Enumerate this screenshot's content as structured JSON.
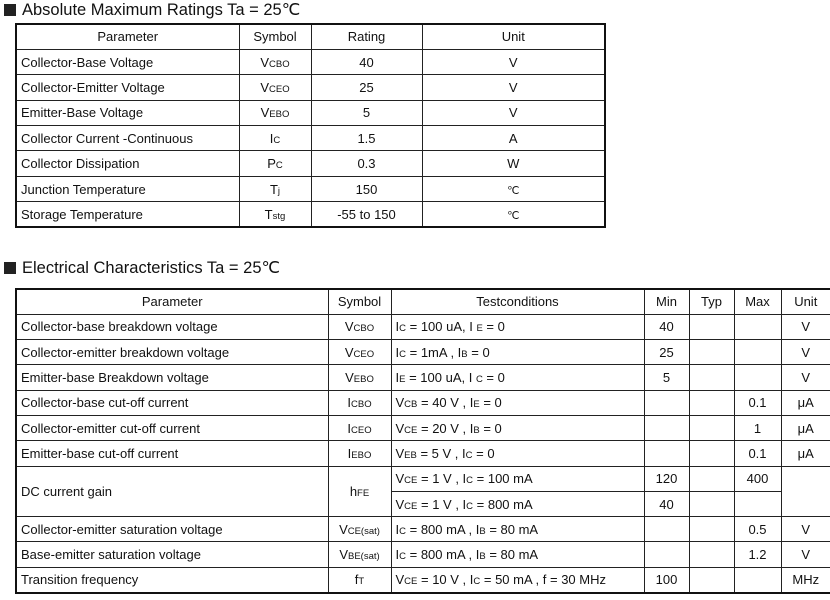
{
  "section1": {
    "title": "Absolute Maximum Ratings Ta = 25℃",
    "headers": [
      "Parameter",
      "Symbol",
      "Rating",
      "Unit"
    ],
    "rows": [
      {
        "parameter": "Collector-Base Voltage",
        "symbol": [
          "V",
          "CBO"
        ],
        "rating": "40",
        "unit": "V"
      },
      {
        "parameter": "Collector-Emitter Voltage",
        "symbol": [
          "V",
          "CEO"
        ],
        "rating": "25",
        "unit": "V"
      },
      {
        "parameter": "Emitter-Base Voltage",
        "symbol": [
          "V",
          "EBO"
        ],
        "rating": "5",
        "unit": "V"
      },
      {
        "parameter": "Collector Current -Continuous",
        "symbol": [
          "I",
          "C"
        ],
        "rating": "1.5",
        "unit": "A"
      },
      {
        "parameter": "Collector Dissipation",
        "symbol": [
          "P",
          "C"
        ],
        "rating": "0.3",
        "unit": "W"
      },
      {
        "parameter": "Junction Temperature",
        "symbol": [
          "T",
          "j"
        ],
        "rating": "150",
        "unit": "℃"
      },
      {
        "parameter": "Storage Temperature",
        "symbol": [
          "T",
          "stg"
        ],
        "rating": "-55 to 150",
        "unit": "℃"
      }
    ]
  },
  "section2": {
    "title": "Electrical Characteristics Ta = 25℃",
    "headers": [
      "Parameter",
      "Symbol",
      "Testconditions",
      "Min",
      "Typ",
      "Max",
      "Unit"
    ],
    "rows": [
      {
        "parameter": "Collector-base breakdown voltage",
        "symbol": [
          "V",
          "CBO"
        ],
        "conditions": [
          [
            [
              "I",
              "C"
            ],
            [
              " = 100 uA, I ",
              "E"
            ],
            [
              " = 0",
              ""
            ]
          ]
        ],
        "min": [
          "40"
        ],
        "typ": [
          ""
        ],
        "max": [
          ""
        ],
        "unit": "V"
      },
      {
        "parameter": "Collector-emitter breakdown voltage",
        "symbol": [
          "V",
          "CEO"
        ],
        "conditions": [
          [
            [
              "I",
              "C"
            ],
            [
              " = 1mA , I",
              "B"
            ],
            [
              " = 0",
              ""
            ]
          ]
        ],
        "min": [
          "25"
        ],
        "typ": [
          ""
        ],
        "max": [
          ""
        ],
        "unit": "V"
      },
      {
        "parameter": "Emitter-base Breakdown voltage",
        "symbol": [
          "V",
          "EBO"
        ],
        "conditions": [
          [
            [
              "I",
              "E"
            ],
            [
              " = 100 uA, I ",
              "C"
            ],
            [
              " = 0",
              ""
            ]
          ]
        ],
        "min": [
          "5"
        ],
        "typ": [
          ""
        ],
        "max": [
          ""
        ],
        "unit": "V"
      },
      {
        "parameter": "Collector-base cut-off current",
        "symbol": [
          "I",
          "CBO"
        ],
        "conditions": [
          [
            [
              "V",
              "CB"
            ],
            [
              " = 40 V , I",
              "E"
            ],
            [
              " = 0",
              ""
            ]
          ]
        ],
        "min": [
          ""
        ],
        "typ": [
          ""
        ],
        "max": [
          "0.1"
        ],
        "unit": "μA"
      },
      {
        "parameter": "Collector-emitter cut-off current",
        "symbol": [
          "I",
          "CEO"
        ],
        "conditions": [
          [
            [
              "V",
              "CE"
            ],
            [
              " = 20 V , I",
              "B"
            ],
            [
              " = 0",
              ""
            ]
          ]
        ],
        "min": [
          ""
        ],
        "typ": [
          ""
        ],
        "max": [
          "1"
        ],
        "unit": "μA"
      },
      {
        "parameter": "Emitter-base cut-off current",
        "symbol": [
          "I",
          "EBO"
        ],
        "conditions": [
          [
            [
              "V",
              "EB"
            ],
            [
              " = 5 V , I",
              "C"
            ],
            [
              " = 0",
              ""
            ]
          ]
        ],
        "min": [
          ""
        ],
        "typ": [
          ""
        ],
        "max": [
          "0.1"
        ],
        "unit": "μA"
      },
      {
        "parameter": "DC current gain",
        "symbol": [
          "h",
          "FE"
        ],
        "conditions": [
          [
            [
              "V",
              "CE"
            ],
            [
              " = 1 V , I",
              "C"
            ],
            [
              " = 100 mA",
              ""
            ]
          ],
          [
            [
              "V",
              "CE"
            ],
            [
              " = 1 V , I",
              "C"
            ],
            [
              " = 800 mA",
              ""
            ]
          ]
        ],
        "min": [
          "120",
          "40"
        ],
        "typ": [
          "",
          ""
        ],
        "max": [
          "400",
          ""
        ],
        "unit": ""
      },
      {
        "parameter": "Collector-emitter saturation voltage",
        "symbol": [
          "V",
          "CE(sat)"
        ],
        "conditions": [
          [
            [
              "I",
              "C"
            ],
            [
              " = 800 mA , I",
              "B"
            ],
            [
              " = 80 mA",
              ""
            ]
          ]
        ],
        "min": [
          ""
        ],
        "typ": [
          ""
        ],
        "max": [
          "0.5"
        ],
        "unit": "V"
      },
      {
        "parameter": "Base-emitter saturation voltage",
        "symbol": [
          "V",
          "BE(sat)"
        ],
        "conditions": [
          [
            [
              "I",
              "C"
            ],
            [
              " = 800 mA , I",
              "B"
            ],
            [
              " = 80 mA",
              ""
            ]
          ]
        ],
        "min": [
          ""
        ],
        "typ": [
          ""
        ],
        "max": [
          "1.2"
        ],
        "unit": "V"
      },
      {
        "parameter": "Transition frequency",
        "symbol": [
          "f",
          "T"
        ],
        "conditions": [
          [
            [
              "V",
              "CE"
            ],
            [
              " = 10 V , I",
              "C"
            ],
            [
              " = 50 mA , f = 30 MHz",
              ""
            ]
          ]
        ],
        "min": [
          "100"
        ],
        "typ": [
          ""
        ],
        "max": [
          ""
        ],
        "unit": "MHz"
      }
    ]
  }
}
